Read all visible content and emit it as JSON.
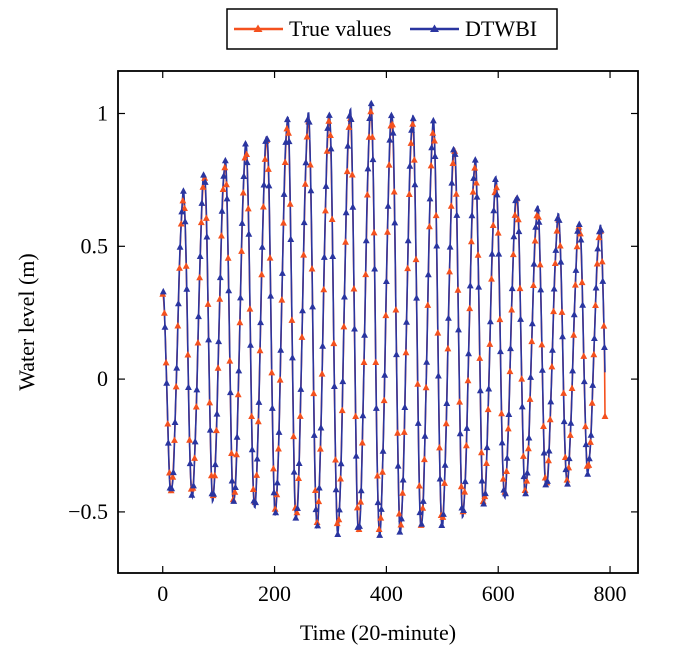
{
  "chart_data": {
    "type": "line",
    "title": "",
    "xlabel": "Time (20-minute)",
    "ylabel": "Water level (m)",
    "xlim": [
      -80,
      850
    ],
    "ylim": [
      -0.73,
      1.16
    ],
    "xticks": [
      0,
      200,
      400,
      600,
      800
    ],
    "yticks": [
      -0.5,
      0,
      0.5,
      1
    ],
    "xtick_labels": [
      "0",
      "200",
      "400",
      "600",
      "800"
    ],
    "ytick_labels": [
      "−0.5",
      "0",
      "0.5",
      "1"
    ],
    "grid": false,
    "legend_position": "top-center",
    "series": [
      {
        "name": "True values",
        "color": "#f4511e",
        "marker": "triangle"
      },
      {
        "name": "DTWBI",
        "color": "#2a35a0",
        "marker": "triangle"
      }
    ],
    "signal": {
      "x_start": 0,
      "x_end": 791,
      "period": 37.26,
      "start_value": 0.32,
      "end_value": -0.14,
      "cycles": [
        {
          "max": 0.32,
          "min": -0.42
        },
        {
          "max": 0.68,
          "min": -0.43
        },
        {
          "max": 0.76,
          "min": -0.44
        },
        {
          "max": 0.8,
          "min": -0.46
        },
        {
          "max": 0.86,
          "min": -0.47
        },
        {
          "max": 0.9,
          "min": -0.49
        },
        {
          "max": 0.96,
          "min": -0.52
        },
        {
          "max": 0.97,
          "min": -0.54
        },
        {
          "max": 0.98,
          "min": -0.56
        },
        {
          "max": 0.99,
          "min": -0.57
        },
        {
          "max": 1.01,
          "min": -0.57
        },
        {
          "max": 0.98,
          "min": -0.56
        },
        {
          "max": 0.96,
          "min": -0.55
        },
        {
          "max": 0.94,
          "min": -0.54
        },
        {
          "max": 0.86,
          "min": -0.5
        },
        {
          "max": 0.8,
          "min": -0.47
        },
        {
          "max": 0.73,
          "min": -0.43
        },
        {
          "max": 0.68,
          "min": -0.42
        },
        {
          "max": 0.63,
          "min": -0.4
        },
        {
          "max": 0.6,
          "min": -0.38
        },
        {
          "max": 0.58,
          "min": -0.34
        },
        {
          "max": 0.56,
          "min": -0.33
        }
      ]
    }
  }
}
